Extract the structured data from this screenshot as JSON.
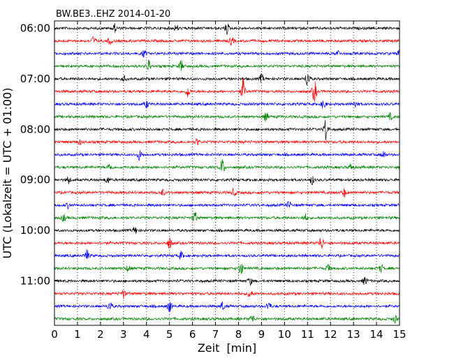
{
  "chart_data": {
    "type": "line",
    "title": "BW.BE3..EHZ 2014-01-20",
    "xlabel": "Zeit  [min]",
    "ylabel": "UTC (Lokalzeit = UTC + 01:00)",
    "xlim": [
      0,
      15
    ],
    "x_ticks": [
      "0",
      "1",
      "2",
      "3",
      "4",
      "5",
      "6",
      "7",
      "8",
      "9",
      "10",
      "11",
      "12",
      "13",
      "14",
      "15"
    ],
    "y_tick_labels": [
      "06:00",
      "07:00",
      "08:00",
      "09:00",
      "10:00",
      "11:00"
    ],
    "grid_x": "dotted",
    "trace_interval_min": 15,
    "trace_colors": [
      "#000000",
      "#ff0000",
      "#0000ff",
      "#008000"
    ],
    "traces": [
      {
        "start": "06:00",
        "color": "#000000",
        "bursts": [
          {
            "t": 2.6,
            "a": 0.35
          },
          {
            "t": 5.3,
            "a": 0.25
          },
          {
            "t": 7.5,
            "a": 0.45
          }
        ]
      },
      {
        "start": "06:15",
        "color": "#ff0000",
        "bursts": [
          {
            "t": 1.7,
            "a": 0.35
          },
          {
            "t": 2.4,
            "a": 0.3
          },
          {
            "t": 7.7,
            "a": 0.35
          }
        ]
      },
      {
        "start": "06:30",
        "color": "#0000ff",
        "bursts": [
          {
            "t": 3.9,
            "a": 0.3
          },
          {
            "t": 12.3,
            "a": 0.25
          },
          {
            "t": 15.0,
            "a": 0.3
          }
        ]
      },
      {
        "start": "06:45",
        "color": "#008000",
        "bursts": [
          {
            "t": 4.1,
            "a": 0.5
          },
          {
            "t": 5.5,
            "a": 0.45
          }
        ]
      },
      {
        "start": "07:00",
        "color": "#000000",
        "bursts": [
          {
            "t": 3.0,
            "a": 0.25
          },
          {
            "t": 9.0,
            "a": 0.35
          },
          {
            "t": 11.0,
            "a": 0.7
          }
        ]
      },
      {
        "start": "07:15",
        "color": "#ff0000",
        "bursts": [
          {
            "t": 5.8,
            "a": 0.5
          },
          {
            "t": 8.2,
            "a": 1.0
          },
          {
            "t": 11.3,
            "a": 0.9
          }
        ]
      },
      {
        "start": "07:30",
        "color": "#0000ff",
        "bursts": [
          {
            "t": 4.0,
            "a": 0.3
          },
          {
            "t": 11.7,
            "a": 0.4
          },
          {
            "t": 13.1,
            "a": 0.3
          }
        ]
      },
      {
        "start": "07:45",
        "color": "#008000",
        "bursts": [
          {
            "t": 9.2,
            "a": 0.35
          },
          {
            "t": 14.6,
            "a": 0.25
          }
        ]
      },
      {
        "start": "08:00",
        "color": "#000000",
        "bursts": [
          {
            "t": 11.8,
            "a": 1.0
          }
        ]
      },
      {
        "start": "08:15",
        "color": "#ff0000",
        "bursts": [
          {
            "t": 1.1,
            "a": 0.2
          },
          {
            "t": 6.2,
            "a": 0.25
          }
        ]
      },
      {
        "start": "08:30",
        "color": "#0000ff",
        "bursts": [
          {
            "t": 3.7,
            "a": 0.45
          },
          {
            "t": 14.3,
            "a": 0.3
          }
        ]
      },
      {
        "start": "08:45",
        "color": "#008000",
        "bursts": [
          {
            "t": 2.4,
            "a": 0.35
          },
          {
            "t": 7.3,
            "a": 0.7
          },
          {
            "t": 12.9,
            "a": 0.3
          }
        ]
      },
      {
        "start": "09:00",
        "color": "#000000",
        "bursts": [
          {
            "t": 0.6,
            "a": 0.3
          },
          {
            "t": 2.3,
            "a": 0.3
          },
          {
            "t": 11.2,
            "a": 0.35
          }
        ]
      },
      {
        "start": "09:15",
        "color": "#ff0000",
        "bursts": [
          {
            "t": 4.7,
            "a": 0.25
          },
          {
            "t": 7.8,
            "a": 0.3
          },
          {
            "t": 12.6,
            "a": 0.35
          }
        ]
      },
      {
        "start": "09:30",
        "color": "#0000ff",
        "bursts": [
          {
            "t": 0.6,
            "a": 0.2
          },
          {
            "t": 10.2,
            "a": 0.3
          }
        ]
      },
      {
        "start": "09:45",
        "color": "#008000",
        "bursts": [
          {
            "t": 0.4,
            "a": 0.3
          },
          {
            "t": 6.1,
            "a": 0.5
          },
          {
            "t": 10.9,
            "a": 0.3
          }
        ]
      },
      {
        "start": "10:00",
        "color": "#000000",
        "bursts": [
          {
            "t": 3.5,
            "a": 0.3
          }
        ]
      },
      {
        "start": "10:15",
        "color": "#ff0000",
        "bursts": [
          {
            "t": 5.0,
            "a": 0.45
          },
          {
            "t": 11.6,
            "a": 0.6
          }
        ]
      },
      {
        "start": "10:30",
        "color": "#0000ff",
        "bursts": [
          {
            "t": 1.4,
            "a": 0.5
          },
          {
            "t": 5.5,
            "a": 0.3
          }
        ]
      },
      {
        "start": "10:45",
        "color": "#008000",
        "bursts": [
          {
            "t": 3.2,
            "a": 0.25
          },
          {
            "t": 8.1,
            "a": 0.6
          },
          {
            "t": 11.9,
            "a": 0.3
          },
          {
            "t": 14.2,
            "a": 0.3
          }
        ]
      },
      {
        "start": "11:00",
        "color": "#000000",
        "bursts": [
          {
            "t": 8.5,
            "a": 0.3
          },
          {
            "t": 13.5,
            "a": 0.35
          }
        ]
      },
      {
        "start": "11:15",
        "color": "#ff0000",
        "bursts": [
          {
            "t": 3.0,
            "a": 0.35
          },
          {
            "t": 8.5,
            "a": 0.4
          }
        ]
      },
      {
        "start": "11:30",
        "color": "#0000ff",
        "bursts": [
          {
            "t": 2.4,
            "a": 0.4
          },
          {
            "t": 5.0,
            "a": 0.5
          },
          {
            "t": 7.3,
            "a": 0.35
          },
          {
            "t": 9.3,
            "a": 0.4
          }
        ]
      },
      {
        "start": "11:45",
        "color": "#008000",
        "bursts": [
          {
            "t": 8.6,
            "a": 0.35
          },
          {
            "t": 14.8,
            "a": 0.3
          }
        ]
      }
    ]
  }
}
